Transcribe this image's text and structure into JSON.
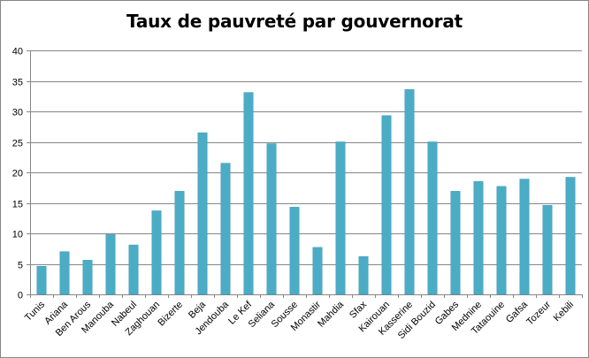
{
  "chart_data": {
    "type": "bar",
    "title": "Taux de pauvreté par gouvernorat",
    "xlabel": "",
    "ylabel": "",
    "ylim": [
      0,
      40
    ],
    "yticks": [
      0,
      5,
      10,
      15,
      20,
      25,
      30,
      35,
      40
    ],
    "grid": true,
    "legend": "none",
    "bar_color": "#4BACC6",
    "categories": [
      "Tunis",
      "Ariana",
      "Ben Arous",
      "Manouba",
      "Nabeul",
      "Zaghouan",
      "Bizerte",
      "Beja",
      "Jendouba",
      "Le Kef",
      "Seliana",
      "Sousse",
      "Monastir",
      "Mahdia",
      "Sfax",
      "Kairouan",
      "Kasserine",
      "Sidi Bouzid",
      "Gabes",
      "Mednine",
      "Tataouine",
      "Gafsa",
      "Tozeur",
      "Kebili"
    ],
    "values": [
      4.6,
      7.0,
      5.6,
      9.8,
      8.1,
      13.7,
      16.9,
      26.5,
      21.5,
      33.1,
      24.7,
      14.3,
      7.7,
      25.0,
      6.2,
      29.3,
      33.6,
      25.0,
      16.9,
      18.5,
      17.7,
      18.9,
      14.6,
      19.2
    ]
  }
}
